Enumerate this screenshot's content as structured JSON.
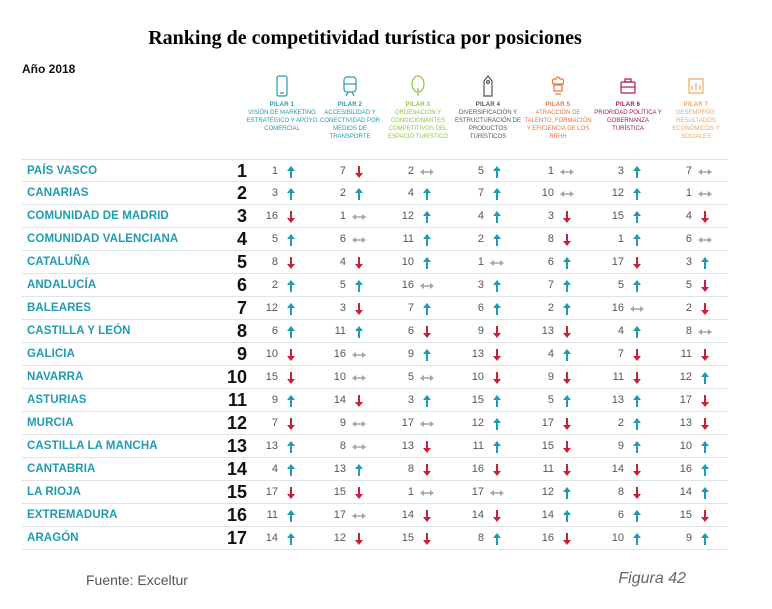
{
  "title": "Ranking de competitividad turística por posiciones",
  "year_label": "Año 2018",
  "source": "Fuente: Exceltur",
  "figure_label": "Figura 42",
  "colors": {
    "region": "#1f9bb3",
    "up": "#1f9bb3",
    "down": "#c8203a",
    "equal": "#a6a6a6"
  },
  "pillars": [
    {
      "name": "PILAR 1",
      "desc": "VISIÓN DE MARKETING ESTRATÉGICO Y APOYO COMERCIAL",
      "color": "#1f9bb3",
      "icon": "phone-icon"
    },
    {
      "name": "PILAR 2",
      "desc": "ACCESIBILIDAD Y CONECTIVIDAD POR MEDIOS DE TRANSPORTE",
      "color": "#1f9bb3",
      "icon": "train-icon"
    },
    {
      "name": "PILAR 3",
      "desc": "ORDENACIÓN Y CONDICIONANTES COMPETITIVOS DEL ESPACIO TURÍSTICO",
      "color": "#8cc63f",
      "icon": "tree-icon"
    },
    {
      "name": "PILAR 4",
      "desc": "DIVERSIFICACIÓN Y ESTRUCTURACIÓN DE PRODUCTOS TURÍSTICOS",
      "color": "#555555",
      "icon": "hanger-tag-icon"
    },
    {
      "name": "PILAR 5",
      "desc": "ATRACCIÓN DE TALENTO, FORMACIÓN Y EFICIENCIA DE LOS RRHH",
      "color": "#e8743b",
      "icon": "chef-icon"
    },
    {
      "name": "PILAR 6",
      "desc": "PRIORIDAD POLÍTICA Y GOBERNANZA TURÍSTICA",
      "color": "#a3195b",
      "icon": "briefcase-icon"
    },
    {
      "name": "PILAR 7",
      "desc": "DESEMPEÑO: RESULTADOS ECONÓMICOS Y SOCIALES",
      "color": "#f2a35e",
      "icon": "chart-icon"
    }
  ],
  "chart_data": {
    "type": "table",
    "title": "Ranking de competitividad turística por posiciones",
    "columns": [
      "PILAR 1",
      "PILAR 2",
      "PILAR 3",
      "PILAR 4",
      "PILAR 5",
      "PILAR 6",
      "PILAR 7"
    ],
    "rows": [
      {
        "region": "PAÍS VASCO",
        "rank": 1,
        "pillars": [
          [
            1,
            "up"
          ],
          [
            7,
            "down"
          ],
          [
            2,
            "equal"
          ],
          [
            5,
            "up"
          ],
          [
            1,
            "equal"
          ],
          [
            3,
            "up"
          ],
          [
            7,
            "equal"
          ]
        ]
      },
      {
        "region": "CANARIAS",
        "rank": 2,
        "pillars": [
          [
            3,
            "up"
          ],
          [
            2,
            "up"
          ],
          [
            4,
            "up"
          ],
          [
            7,
            "up"
          ],
          [
            10,
            "equal"
          ],
          [
            12,
            "up"
          ],
          [
            1,
            "equal"
          ]
        ]
      },
      {
        "region": "COMUNIDAD DE MADRID",
        "rank": 3,
        "pillars": [
          [
            16,
            "down"
          ],
          [
            1,
            "equal"
          ],
          [
            12,
            "up"
          ],
          [
            4,
            "up"
          ],
          [
            3,
            "down"
          ],
          [
            15,
            "up"
          ],
          [
            4,
            "down"
          ]
        ]
      },
      {
        "region": "COMUNIDAD VALENCIANA",
        "rank": 4,
        "pillars": [
          [
            5,
            "up"
          ],
          [
            6,
            "equal"
          ],
          [
            11,
            "up"
          ],
          [
            2,
            "up"
          ],
          [
            8,
            "down"
          ],
          [
            1,
            "up"
          ],
          [
            6,
            "equal"
          ]
        ]
      },
      {
        "region": "CATALUÑA",
        "rank": 5,
        "pillars": [
          [
            8,
            "down"
          ],
          [
            4,
            "down"
          ],
          [
            10,
            "up"
          ],
          [
            1,
            "equal"
          ],
          [
            6,
            "up"
          ],
          [
            17,
            "down"
          ],
          [
            3,
            "up"
          ]
        ]
      },
      {
        "region": "ANDALUCÍA",
        "rank": 6,
        "pillars": [
          [
            2,
            "up"
          ],
          [
            5,
            "up"
          ],
          [
            16,
            "equal"
          ],
          [
            3,
            "up"
          ],
          [
            7,
            "up"
          ],
          [
            5,
            "up"
          ],
          [
            5,
            "down"
          ]
        ]
      },
      {
        "region": "BALEARES",
        "rank": 7,
        "pillars": [
          [
            12,
            "up"
          ],
          [
            3,
            "down"
          ],
          [
            7,
            "up"
          ],
          [
            6,
            "up"
          ],
          [
            2,
            "up"
          ],
          [
            16,
            "equal"
          ],
          [
            2,
            "down"
          ]
        ]
      },
      {
        "region": "CASTILLA Y LEÓN",
        "rank": 8,
        "pillars": [
          [
            6,
            "up"
          ],
          [
            11,
            "up"
          ],
          [
            6,
            "down"
          ],
          [
            9,
            "down"
          ],
          [
            13,
            "down"
          ],
          [
            4,
            "up"
          ],
          [
            8,
            "equal"
          ]
        ]
      },
      {
        "region": "GALICIA",
        "rank": 9,
        "pillars": [
          [
            10,
            "down"
          ],
          [
            16,
            "equal"
          ],
          [
            9,
            "up"
          ],
          [
            13,
            "down"
          ],
          [
            4,
            "up"
          ],
          [
            7,
            "down"
          ],
          [
            11,
            "down"
          ]
        ]
      },
      {
        "region": "NAVARRA",
        "rank": 10,
        "pillars": [
          [
            15,
            "down"
          ],
          [
            10,
            "equal"
          ],
          [
            5,
            "equal"
          ],
          [
            10,
            "down"
          ],
          [
            9,
            "down"
          ],
          [
            11,
            "down"
          ],
          [
            12,
            "up"
          ]
        ]
      },
      {
        "region": "ASTURIAS",
        "rank": 11,
        "pillars": [
          [
            9,
            "up"
          ],
          [
            14,
            "down"
          ],
          [
            3,
            "up"
          ],
          [
            15,
            "up"
          ],
          [
            5,
            "up"
          ],
          [
            13,
            "up"
          ],
          [
            17,
            "down"
          ]
        ]
      },
      {
        "region": "MURCIA",
        "rank": 12,
        "pillars": [
          [
            7,
            "down"
          ],
          [
            9,
            "equal"
          ],
          [
            17,
            "equal"
          ],
          [
            12,
            "up"
          ],
          [
            17,
            "down"
          ],
          [
            2,
            "up"
          ],
          [
            13,
            "down"
          ]
        ]
      },
      {
        "region": "CASTILLA LA MANCHA",
        "rank": 13,
        "pillars": [
          [
            13,
            "up"
          ],
          [
            8,
            "equal"
          ],
          [
            13,
            "down"
          ],
          [
            11,
            "up"
          ],
          [
            15,
            "down"
          ],
          [
            9,
            "up"
          ],
          [
            10,
            "up"
          ]
        ]
      },
      {
        "region": "CANTABRIA",
        "rank": 14,
        "pillars": [
          [
            4,
            "up"
          ],
          [
            13,
            "up"
          ],
          [
            8,
            "down"
          ],
          [
            16,
            "down"
          ],
          [
            11,
            "down"
          ],
          [
            14,
            "down"
          ],
          [
            16,
            "up"
          ]
        ]
      },
      {
        "region": "LA RIOJA",
        "rank": 15,
        "pillars": [
          [
            17,
            "down"
          ],
          [
            15,
            "down"
          ],
          [
            1,
            "equal"
          ],
          [
            17,
            "equal"
          ],
          [
            12,
            "up"
          ],
          [
            8,
            "down"
          ],
          [
            14,
            "up"
          ]
        ]
      },
      {
        "region": "EXTREMADURA",
        "rank": 16,
        "pillars": [
          [
            11,
            "up"
          ],
          [
            17,
            "equal"
          ],
          [
            14,
            "down"
          ],
          [
            14,
            "down"
          ],
          [
            14,
            "up"
          ],
          [
            6,
            "up"
          ],
          [
            15,
            "down"
          ]
        ]
      },
      {
        "region": "ARAGÓN",
        "rank": 17,
        "pillars": [
          [
            14,
            "up"
          ],
          [
            12,
            "down"
          ],
          [
            15,
            "down"
          ],
          [
            8,
            "up"
          ],
          [
            16,
            "down"
          ],
          [
            10,
            "up"
          ],
          [
            9,
            "up"
          ]
        ]
      }
    ]
  }
}
